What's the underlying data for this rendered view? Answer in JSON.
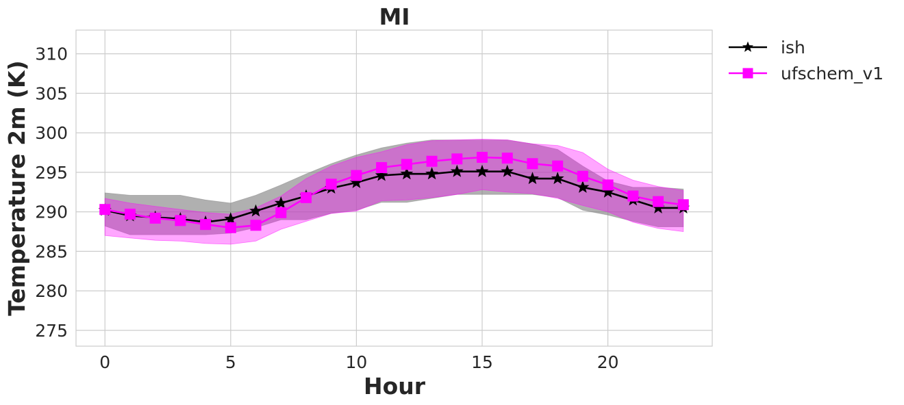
{
  "chart_data": {
    "type": "line",
    "title": "MI",
    "xlabel": "Hour",
    "ylabel": "Temperature 2m (K)",
    "xlim": [
      -1.15,
      24.15
    ],
    "ylim": [
      273,
      313
    ],
    "xticks": [
      0,
      5,
      10,
      15,
      20
    ],
    "yticks": [
      275,
      280,
      285,
      290,
      295,
      300,
      305,
      310
    ],
    "grid": true,
    "legend_position": "outside-top-right",
    "x": [
      0,
      1,
      2,
      3,
      4,
      5,
      6,
      7,
      8,
      9,
      10,
      11,
      12,
      13,
      14,
      15,
      16,
      17,
      18,
      19,
      20,
      21,
      22,
      23
    ],
    "series": [
      {
        "name": "ish",
        "color": "#000000",
        "marker": "star",
        "band_color": "#808080",
        "values": [
          290.2,
          289.5,
          289.3,
          289.1,
          288.7,
          289.1,
          290.1,
          291.1,
          292.0,
          293.0,
          293.7,
          294.6,
          294.8,
          294.8,
          295.1,
          295.1,
          295.1,
          294.2,
          294.2,
          293.1,
          292.5,
          291.5,
          290.5,
          290.5
        ],
        "lower": [
          288.2,
          287.1,
          287.1,
          287.1,
          287.1,
          287.3,
          288.0,
          289.0,
          289.0,
          289.8,
          290.2,
          291.2,
          291.2,
          291.7,
          292.2,
          292.2,
          292.2,
          292.2,
          291.8,
          290.2,
          289.6,
          288.8,
          288.1,
          288.1
        ],
        "upper": [
          292.4,
          292.1,
          292.1,
          292.1,
          291.5,
          291.1,
          292.1,
          293.4,
          294.8,
          296.1,
          297.2,
          298.1,
          298.7,
          299.1,
          299.1,
          299.1,
          299.1,
          298.6,
          297.9,
          295.8,
          293.9,
          293.1,
          293.1,
          292.9
        ]
      },
      {
        "name": "ufschem_v1",
        "color": "#ff00ff",
        "marker": "square",
        "band_color": "#ff00ff",
        "values": [
          290.3,
          289.7,
          289.2,
          288.9,
          288.4,
          288.0,
          288.3,
          289.9,
          291.8,
          293.5,
          294.6,
          295.6,
          296.0,
          296.4,
          296.7,
          296.9,
          296.8,
          296.1,
          295.8,
          294.5,
          293.4,
          292.0,
          291.3,
          290.9
        ],
        "lower": [
          287.0,
          286.7,
          286.4,
          286.3,
          286.0,
          285.9,
          286.3,
          287.8,
          288.8,
          289.8,
          290.1,
          291.4,
          291.5,
          291.8,
          292.2,
          292.8,
          292.5,
          292.3,
          291.7,
          290.8,
          290.0,
          288.7,
          287.9,
          287.5
        ],
        "upper": [
          291.7,
          291.1,
          290.7,
          290.3,
          289.9,
          289.7,
          290.5,
          292.0,
          294.2,
          295.8,
          296.9,
          297.6,
          298.5,
          299.0,
          299.1,
          299.2,
          299.1,
          298.6,
          298.4,
          297.5,
          295.4,
          294.0,
          293.2,
          292.7
        ]
      }
    ]
  }
}
